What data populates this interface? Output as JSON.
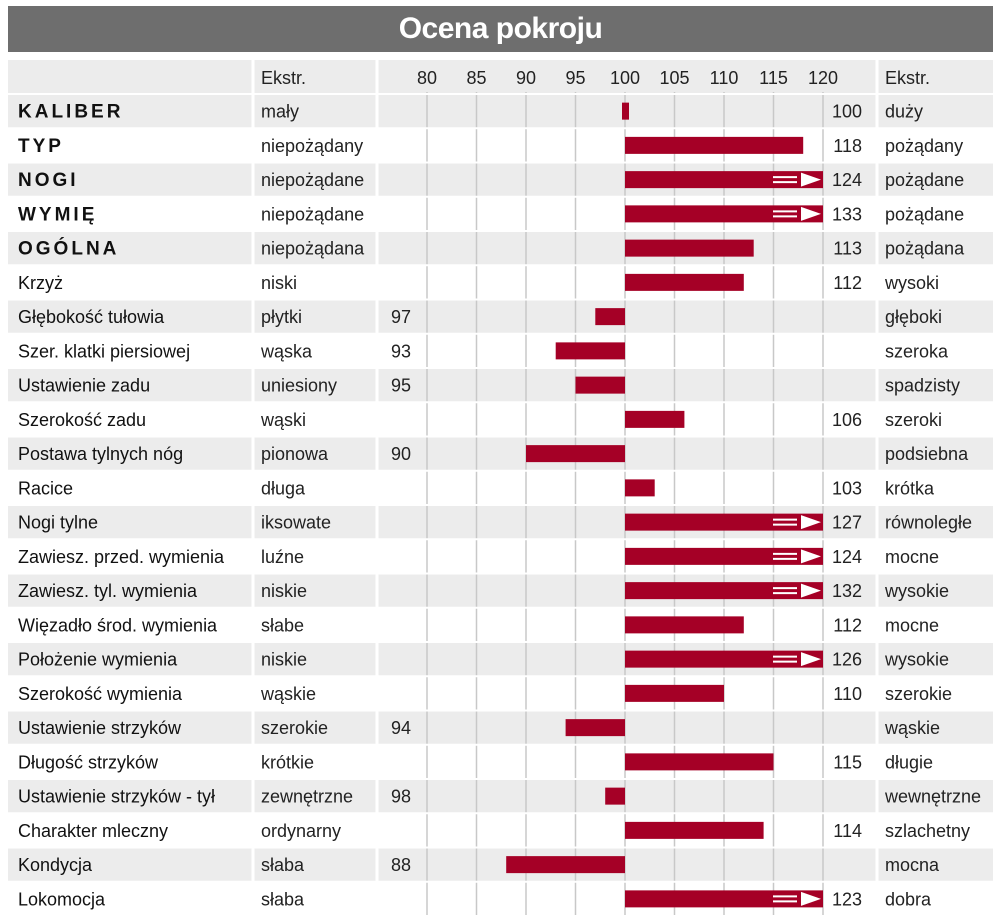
{
  "title": "Ocena pokroju",
  "chart_data": {
    "type": "bar",
    "title": "Ocena pokroju",
    "header": {
      "left_extreme": "Ekstr.",
      "right_extreme": "Ekstr."
    },
    "xlim": [
      80,
      120
    ],
    "baseline": 100,
    "xticks": [
      80,
      85,
      90,
      95,
      100,
      105,
      110,
      115,
      120
    ],
    "grid": true,
    "colors": {
      "bar": "#a50026",
      "row_shade": "#ececec",
      "title_bg": "#6e6e6e",
      "grid": "#c8c8c8"
    },
    "rows": [
      {
        "label": "KALIBER",
        "bold": true,
        "low": "mały",
        "high": "duży",
        "value": 100,
        "overflow": false
      },
      {
        "label": "TYP",
        "bold": true,
        "low": "niepożądany",
        "high": "pożądany",
        "value": 118,
        "overflow": false
      },
      {
        "label": "NOGI",
        "bold": true,
        "low": "niepożądane",
        "high": "pożądane",
        "value": 124,
        "overflow": true
      },
      {
        "label": "WYMIĘ",
        "bold": true,
        "low": "niepożądane",
        "high": "pożądane",
        "value": 133,
        "overflow": true
      },
      {
        "label": "OGÓLNA",
        "bold": true,
        "low": "niepożądana",
        "high": "pożądana",
        "value": 113,
        "overflow": false
      },
      {
        "label": "Krzyż",
        "bold": false,
        "low": "niski",
        "high": "wysoki",
        "value": 112,
        "overflow": false
      },
      {
        "label": "Głębokość tułowia",
        "bold": false,
        "low": "płytki",
        "high": "głęboki",
        "value": 97,
        "overflow": false
      },
      {
        "label": "Szer. klatki piersiowej",
        "bold": false,
        "low": "wąska",
        "high": "szeroka",
        "value": 93,
        "overflow": false
      },
      {
        "label": "Ustawienie zadu",
        "bold": false,
        "low": "uniesiony",
        "high": "spadzisty",
        "value": 95,
        "overflow": false
      },
      {
        "label": "Szerokość zadu",
        "bold": false,
        "low": "wąski",
        "high": "szeroki",
        "value": 106,
        "overflow": false
      },
      {
        "label": "Postawa tylnych nóg",
        "bold": false,
        "low": "pionowa",
        "high": "podsiebna",
        "value": 90,
        "overflow": false
      },
      {
        "label": "Racice",
        "bold": false,
        "low": "długa",
        "high": "krótka",
        "value": 103,
        "overflow": false
      },
      {
        "label": "Nogi tylne",
        "bold": false,
        "low": "iksowate",
        "high": "równoległe",
        "value": 127,
        "overflow": true
      },
      {
        "label": "Zawiesz. przed. wymienia",
        "bold": false,
        "low": "luźne",
        "high": "mocne",
        "value": 124,
        "overflow": true
      },
      {
        "label": "Zawiesz. tyl. wymienia",
        "bold": false,
        "low": "niskie",
        "high": "wysokie",
        "value": 132,
        "overflow": true
      },
      {
        "label": "Więzadło środ. wymienia",
        "bold": false,
        "low": "słabe",
        "high": "mocne",
        "value": 112,
        "overflow": false
      },
      {
        "label": "Położenie wymienia",
        "bold": false,
        "low": "niskie",
        "high": "wysokie",
        "value": 126,
        "overflow": true
      },
      {
        "label": "Szerokość wymienia",
        "bold": false,
        "low": "wąskie",
        "high": "szerokie",
        "value": 110,
        "overflow": false
      },
      {
        "label": "Ustawienie strzyków",
        "bold": false,
        "low": "szerokie",
        "high": "wąskie",
        "value": 94,
        "overflow": false
      },
      {
        "label": "Długość strzyków",
        "bold": false,
        "low": "krótkie",
        "high": "długie",
        "value": 115,
        "overflow": false
      },
      {
        "label": "Ustawienie strzyków - tył",
        "bold": false,
        "low": "zewnętrzne",
        "high": "wewnętrzne",
        "value": 98,
        "overflow": false
      },
      {
        "label": "Charakter mleczny",
        "bold": false,
        "low": "ordynarny",
        "high": "szlachetny",
        "value": 114,
        "overflow": false
      },
      {
        "label": "Kondycja",
        "bold": false,
        "low": "słaba",
        "high": "mocna",
        "value": 88,
        "overflow": false
      },
      {
        "label": "Lokomocja",
        "bold": false,
        "low": "słaba",
        "high": "dobra",
        "value": 123,
        "overflow": true
      }
    ]
  }
}
